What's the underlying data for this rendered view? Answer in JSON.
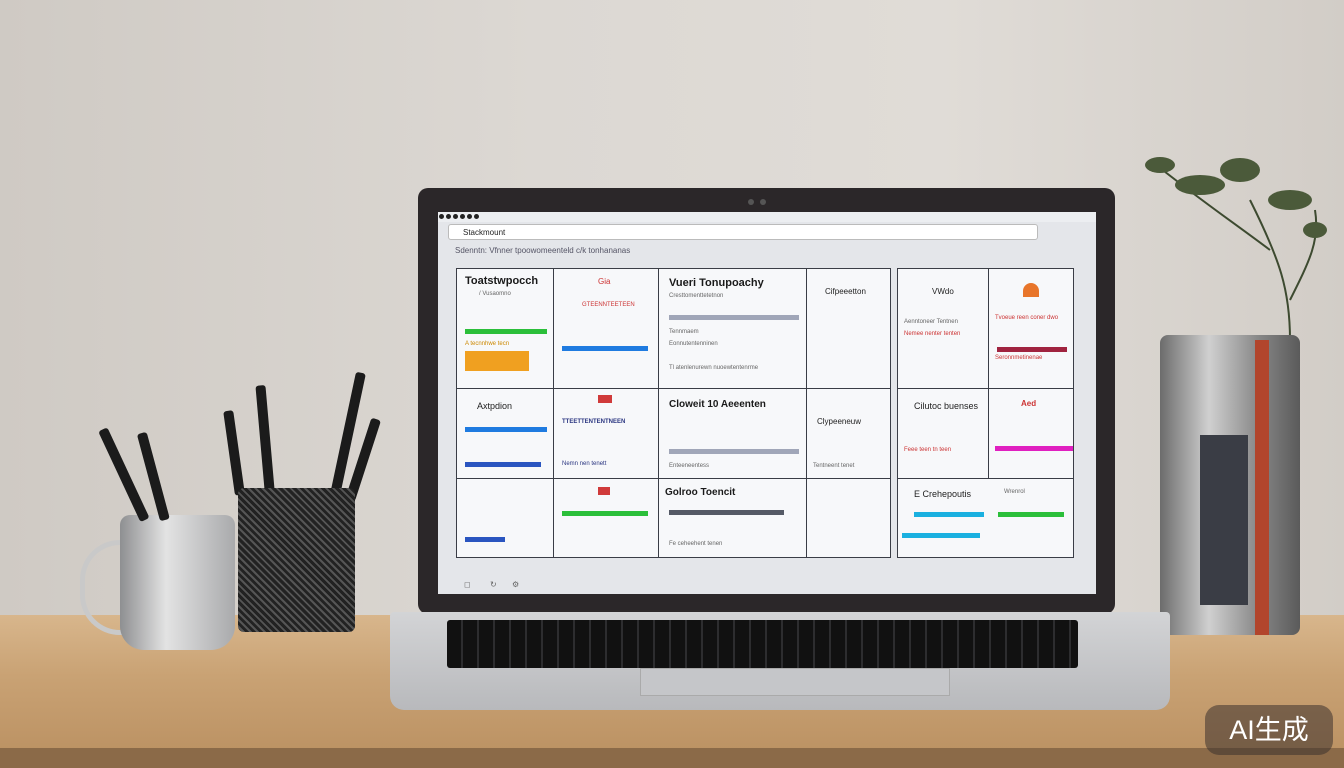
{
  "browser": {
    "address": "Stackmount",
    "header_text": "Sdenntn: Vfnner tpoowomeenteld c/k tonhananas"
  },
  "cards": {
    "c1": {
      "title": "Toatstwpocch",
      "sub": "/ Vusaomno",
      "caption": "A tecnnhwe tecn"
    },
    "c2": {
      "icon": "Gia",
      "label": "GTEENNTEETEEN"
    },
    "c3": {
      "title": "Vueri Tonupoachy",
      "sub": "Cresttomenttetetnon",
      "line1": "Tennmaem",
      "line2": "Eonnutentenninen",
      "line3": "Tl atenlenurewn nuoewtentenrme"
    },
    "c4": {
      "title": "Cifpeeetton"
    },
    "c5": {
      "title": "VWdo",
      "line1": "Aenntoneer Tentnen",
      "line2": "Nemee nenter tenten"
    },
    "c6": {
      "line1": "Tvoeue reen coner dwo",
      "line2": "Seronnmetinenae"
    },
    "c7": {
      "title": "Axtpdion"
    },
    "c8": {
      "label": "TTEETTENTENTNEEN",
      "foot": "Nemn nen tenett"
    },
    "c9": {
      "title": "Cloweit 10 Aeeenten",
      "foot": "Enteeneentess"
    },
    "c10": {
      "title": "Clypeeneuw",
      "foot": "Tentneent tenet"
    },
    "c11": {
      "title": "Cilutoc buenses",
      "line1": "Feee teen tn teen"
    },
    "c12": {
      "icon": "Aed"
    },
    "c14": {
      "title": "Golroo Toencit",
      "foot": "Fe ceheehent tenen"
    },
    "c16": {
      "title": "E Crehepoutis",
      "sub": "Wrenrol"
    }
  },
  "watermark": "AI生成",
  "colors": {
    "green": "#2bbf3a",
    "blue": "#1f7be0",
    "magenta": "#e020c0",
    "orange": "#f0a020",
    "cyan": "#1ab0e0",
    "navy": "#2a3580",
    "red": "#d03a3a"
  }
}
